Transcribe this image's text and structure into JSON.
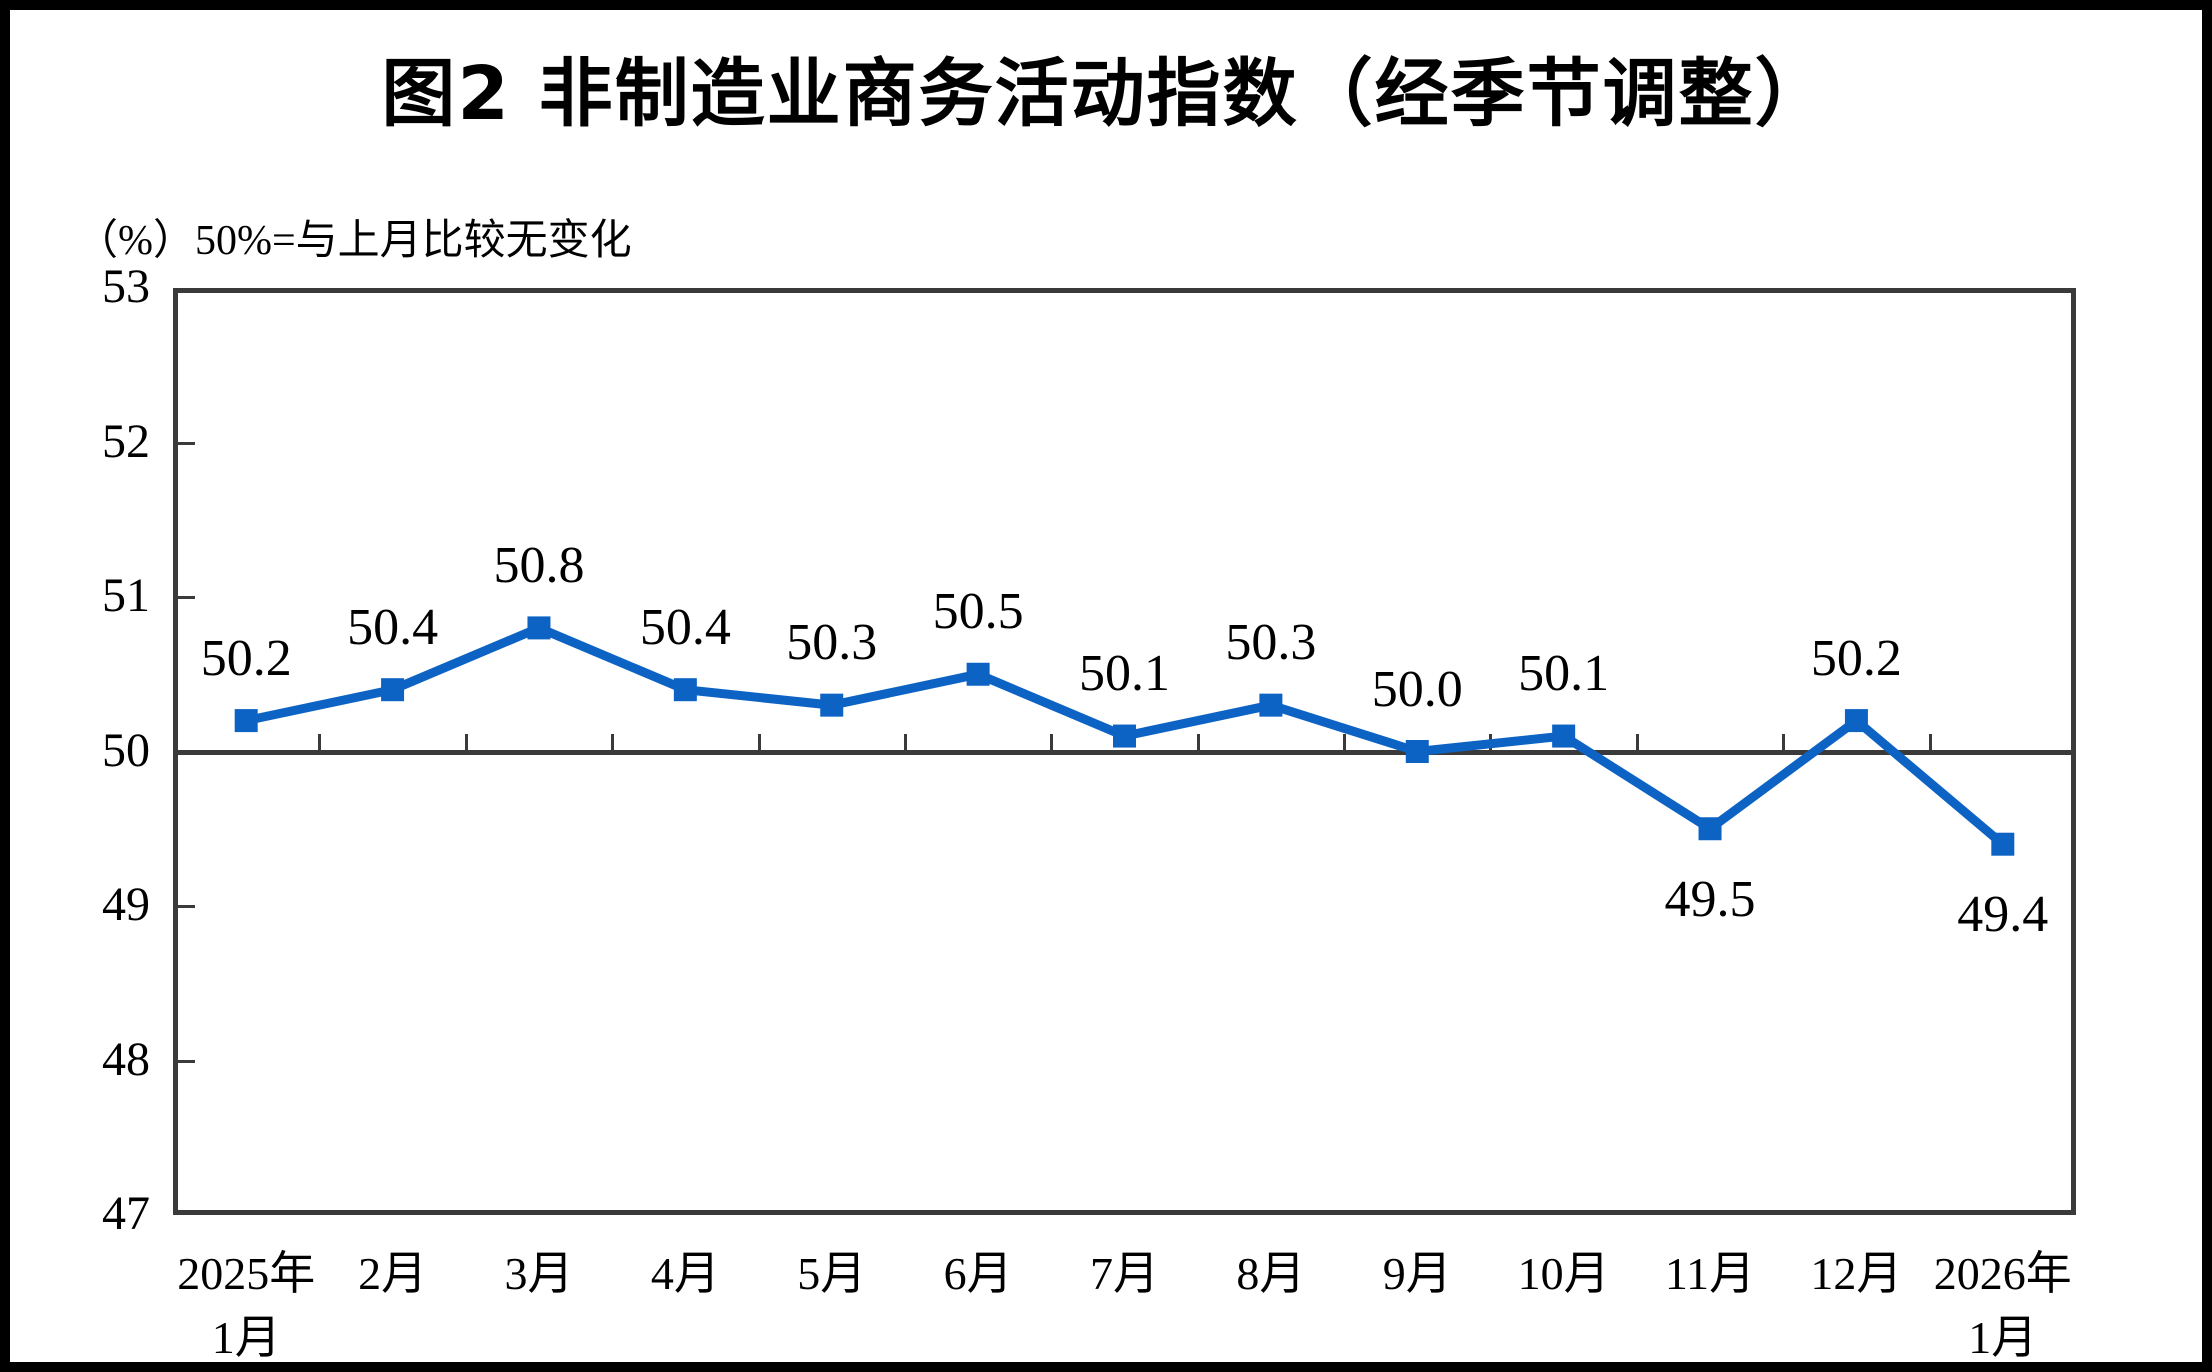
{
  "title": "图2 非制造业商务活动指数（经季节调整）",
  "unit_note": "（%）50%=与上月比较无变化",
  "colors": {
    "line": "#0d63c4",
    "axis": "#3a3a3a",
    "text": "#000000",
    "background": "#ffffff",
    "frame": "#000000"
  },
  "chart_data": {
    "type": "line",
    "title": "图2 非制造业商务活动指数（经季节调整）",
    "ylabel": "（%）50%=与上月比较无变化",
    "categories": [
      "2025年\n1月",
      "2月",
      "3月",
      "4月",
      "5月",
      "6月",
      "7月",
      "8月",
      "9月",
      "10月",
      "11月",
      "12月",
      "2026年\n1月"
    ],
    "values": [
      50.2,
      50.4,
      50.8,
      50.4,
      50.3,
      50.5,
      50.1,
      50.3,
      50.0,
      50.1,
      49.5,
      50.2,
      49.4
    ],
    "data_labels": [
      "50.2",
      "50.4",
      "50.8",
      "50.4",
      "50.3",
      "50.5",
      "50.1",
      "50.3",
      "50.0",
      "50.1",
      "49.5",
      "50.2",
      "49.4"
    ],
    "label_below_indices": [
      10,
      12
    ],
    "ylim": [
      47,
      53
    ],
    "yticks": [
      53,
      52,
      51,
      50,
      49,
      48,
      47
    ],
    "reference_line": 50,
    "grid": false,
    "legend": "none",
    "marker": "square",
    "line_color": "#0d63c4"
  }
}
